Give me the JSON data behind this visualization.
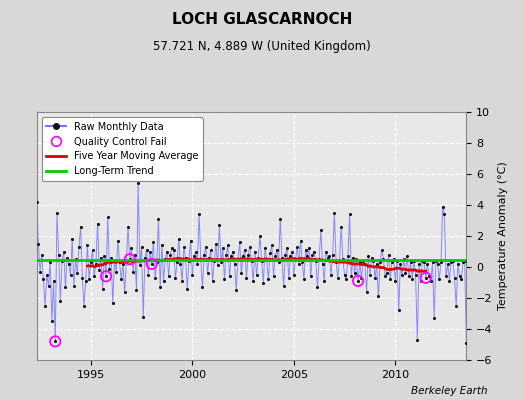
{
  "title": "LOCH GLASCARNOCH",
  "subtitle": "57.721 N, 4.889 W (United Kingdom)",
  "ylabel": "Temperature Anomaly (°C)",
  "credit": "Berkeley Earth",
  "start_year": 1992.333,
  "end_year": 2013.5,
  "ylim": [
    -6,
    10
  ],
  "yticks": [
    -6,
    -4,
    -2,
    0,
    2,
    4,
    6,
    8,
    10
  ],
  "xticks": [
    1995,
    2000,
    2005,
    2010
  ],
  "bg_color": "#d8d8d8",
  "plot_bg_color": "#e8e8e8",
  "line_color": "#5555ff",
  "line_alpha": 0.65,
  "dot_color": "#111111",
  "qc_color": "#ff00ff",
  "ma_color": "#dd0000",
  "trend_color": "#00cc00",
  "trend_level": 0.42,
  "grid_color": "#ffffff",
  "grid_style": "--",
  "raw_data": [
    4.2,
    1.5,
    -0.3,
    0.8,
    -0.8,
    -2.5,
    -0.5,
    -1.2,
    0.3,
    -3.5,
    -0.9,
    -4.8,
    3.5,
    0.8,
    -2.2,
    0.4,
    1.0,
    -1.3,
    0.6,
    0.2,
    -0.5,
    1.8,
    -1.2,
    0.5,
    -0.4,
    1.3,
    2.6,
    -0.7,
    -2.5,
    -0.9,
    1.4,
    -0.8,
    0.3,
    1.1,
    -0.6,
    0.2,
    2.8,
    -0.2,
    0.6,
    -1.4,
    0.7,
    -0.6,
    3.2,
    -0.1,
    0.6,
    -2.3,
    0.4,
    -0.3,
    1.7,
    0.3,
    -0.8,
    0.2,
    -1.6,
    0.3,
    2.6,
    0.5,
    1.2,
    -0.3,
    0.8,
    -1.5,
    5.4,
    0.1,
    1.3,
    -3.2,
    0.6,
    1.1,
    -0.5,
    1.0,
    0.2,
    1.6,
    -0.7,
    0.3,
    3.1,
    -1.3,
    1.4,
    -0.9,
    0.5,
    1.0,
    -0.6,
    0.8,
    1.2,
    1.1,
    -0.7,
    0.3,
    1.8,
    0.2,
    -0.9,
    1.3,
    0.6,
    -1.4,
    0.4,
    1.7,
    -0.5,
    0.7,
    1.0,
    0.2,
    3.4,
    0.5,
    -1.3,
    0.8,
    1.3,
    -0.4,
    0.6,
    1.1,
    -0.9,
    0.4,
    1.5,
    0.1,
    2.7,
    0.3,
    1.2,
    -0.8,
    0.8,
    1.4,
    -0.6,
    0.7,
    1.0,
    0.2,
    -1.5,
    0.5,
    1.6,
    -0.4,
    0.7,
    1.1,
    -0.7,
    0.8,
    1.3,
    0.4,
    -0.9,
    1.0,
    -0.5,
    0.6,
    2.0,
    0.4,
    -1.0,
    1.2,
    0.5,
    -0.8,
    0.9,
    1.4,
    -0.6,
    0.7,
    1.1,
    0.3,
    3.1,
    0.6,
    -1.2,
    0.8,
    1.2,
    -0.7,
    0.7,
    1.0,
    -0.5,
    0.5,
    1.3,
    0.2,
    1.7,
    0.3,
    -0.8,
    1.1,
    0.7,
    1.2,
    -0.6,
    0.8,
    1.0,
    0.4,
    -1.3,
    0.5,
    2.4,
    0.2,
    -0.9,
    1.0,
    0.6,
    0.7,
    -0.5,
    0.8,
    3.5,
    0.3,
    -0.7,
    0.4,
    2.6,
    0.5,
    -0.5,
    -0.8,
    0.7,
    3.4,
    -0.6,
    0.6,
    -0.4,
    0.5,
    -0.9,
    0.3,
    -0.7,
    0.4,
    0.2,
    -1.6,
    0.7,
    -0.5,
    0.6,
    0.4,
    -0.7,
    0.2,
    -1.9,
    0.3,
    1.1,
    0.5,
    -0.6,
    -0.4,
    0.8,
    -0.8,
    0.3,
    0.5,
    -0.9,
    0.4,
    -2.8,
    0.2,
    -0.5,
    0.5,
    -0.4,
    0.7,
    -0.6,
    0.3,
    -0.8,
    0.4,
    -0.5,
    -4.7,
    0.2,
    -0.9,
    0.4,
    0.3,
    -0.7,
    0.2,
    -0.6,
    -0.9,
    0.3,
    -3.3,
    0.4,
    0.2,
    -0.8,
    0.3,
    3.9,
    3.4,
    -0.6,
    0.2,
    -0.9,
    0.3,
    0.4,
    -0.7,
    -2.5,
    0.2,
    -0.6,
    -0.8,
    0.3,
    0.4,
    -4.9,
    0.2,
    -0.8,
    0.3,
    -0.1,
    0.1
  ],
  "qc_indices": [
    11,
    41,
    55,
    68,
    190,
    230
  ]
}
